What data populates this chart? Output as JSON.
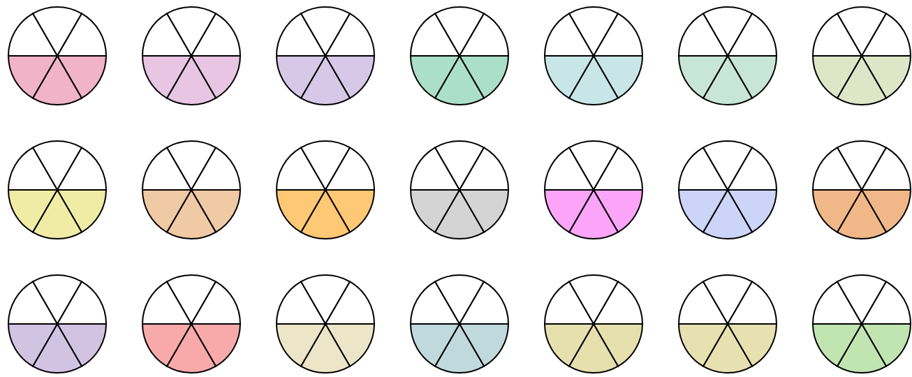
{
  "chart_data": [
    {
      "type": "pie",
      "categories": [
        null,
        null,
        null,
        null,
        null,
        null
      ],
      "values": [
        16.67,
        16.67,
        16.66,
        16.67,
        16.67,
        16.66
      ],
      "colors": [
        "#ffffff",
        "#ffffff",
        "#f0b3c8",
        "#f0b3c8",
        "#f0b3c8",
        "#ffffff"
      ]
    },
    {
      "type": "pie",
      "categories": [
        null,
        null,
        null,
        null,
        null,
        null
      ],
      "values": [
        16.67,
        16.67,
        16.66,
        16.67,
        16.67,
        16.66
      ],
      "colors": [
        "#ffffff",
        "#ffffff",
        "#e8c5e3",
        "#e8c5e3",
        "#e8c5e3",
        "#ffffff"
      ]
    },
    {
      "type": "pie",
      "categories": [
        null,
        null,
        null,
        null,
        null,
        null
      ],
      "values": [
        16.67,
        16.67,
        16.66,
        16.67,
        16.67,
        16.66
      ],
      "colors": [
        "#ffffff",
        "#ffffff",
        "#d6c8e6",
        "#d6c8e6",
        "#d6c8e6",
        "#ffffff"
      ]
    },
    {
      "type": "pie",
      "categories": [
        null,
        null,
        null,
        null,
        null,
        null
      ],
      "values": [
        16.67,
        16.67,
        16.66,
        16.67,
        16.67,
        16.66
      ],
      "colors": [
        "#ffffff",
        "#ffffff",
        "#abdfc9",
        "#abdfc9",
        "#abdfc9",
        "#ffffff"
      ]
    },
    {
      "type": "pie",
      "categories": [
        null,
        null,
        null,
        null,
        null,
        null
      ],
      "values": [
        16.67,
        16.67,
        16.66,
        16.67,
        16.67,
        16.66
      ],
      "colors": [
        "#ffffff",
        "#ffffff",
        "#c8e6e8",
        "#c8e6e8",
        "#c8e6e8",
        "#ffffff"
      ]
    },
    {
      "type": "pie",
      "categories": [
        null,
        null,
        null,
        null,
        null,
        null
      ],
      "values": [
        16.67,
        16.67,
        16.66,
        16.67,
        16.67,
        16.66
      ],
      "colors": [
        "#ffffff",
        "#ffffff",
        "#c7e6d8",
        "#c7e6d8",
        "#c7e6d8",
        "#ffffff"
      ]
    },
    {
      "type": "pie",
      "categories": [
        null,
        null,
        null,
        null,
        null,
        null
      ],
      "values": [
        16.67,
        16.67,
        16.66,
        16.67,
        16.67,
        16.66
      ],
      "colors": [
        "#ffffff",
        "#ffffff",
        "#dfe6c8",
        "#dfe6c8",
        "#dfe6c8",
        "#ffffff"
      ]
    },
    {
      "type": "pie",
      "categories": [
        null,
        null,
        null,
        null,
        null,
        null
      ],
      "values": [
        16.67,
        16.67,
        16.66,
        16.67,
        16.67,
        16.66
      ],
      "colors": [
        "#ffffff",
        "#ffffff",
        "#f1eca5",
        "#f1eca5",
        "#f1eca5",
        "#ffffff"
      ]
    },
    {
      "type": "pie",
      "categories": [
        null,
        null,
        null,
        null,
        null,
        null
      ],
      "values": [
        16.67,
        16.67,
        16.66,
        16.67,
        16.67,
        16.66
      ],
      "colors": [
        "#ffffff",
        "#ffffff",
        "#f0c9a5",
        "#f0c9a5",
        "#f0c9a5",
        "#ffffff"
      ]
    },
    {
      "type": "pie",
      "categories": [
        null,
        null,
        null,
        null,
        null,
        null
      ],
      "values": [
        16.67,
        16.67,
        16.66,
        16.67,
        16.67,
        16.66
      ],
      "colors": [
        "#ffffff",
        "#ffffff",
        "#ffc874",
        "#ffc874",
        "#ffc874",
        "#ffffff"
      ]
    },
    {
      "type": "pie",
      "categories": [
        null,
        null,
        null,
        null,
        null,
        null
      ],
      "values": [
        16.67,
        16.67,
        16.66,
        16.67,
        16.67,
        16.66
      ],
      "colors": [
        "#ffffff",
        "#ffffff",
        "#d4d4d4",
        "#d4d4d4",
        "#d4d4d4",
        "#ffffff"
      ]
    },
    {
      "type": "pie",
      "categories": [
        null,
        null,
        null,
        null,
        null,
        null
      ],
      "values": [
        16.67,
        16.67,
        16.66,
        16.67,
        16.67,
        16.66
      ],
      "colors": [
        "#ffffff",
        "#ffffff",
        "#fca5f8",
        "#fca5f8",
        "#fca5f8",
        "#ffffff"
      ]
    },
    {
      "type": "pie",
      "categories": [
        null,
        null,
        null,
        null,
        null,
        null
      ],
      "values": [
        16.67,
        16.67,
        16.66,
        16.67,
        16.67,
        16.66
      ],
      "colors": [
        "#ffffff",
        "#ffffff",
        "#ccd4f8",
        "#ccd4f8",
        "#ccd4f8",
        "#ffffff"
      ]
    },
    {
      "type": "pie",
      "categories": [
        null,
        null,
        null,
        null,
        null,
        null
      ],
      "values": [
        16.67,
        16.67,
        16.66,
        16.67,
        16.67,
        16.66
      ],
      "colors": [
        "#ffffff",
        "#ffffff",
        "#f0b888",
        "#f0b888",
        "#f0b888",
        "#ffffff"
      ]
    },
    {
      "type": "pie",
      "categories": [
        null,
        null,
        null,
        null,
        null,
        null
      ],
      "values": [
        16.67,
        16.67,
        16.66,
        16.67,
        16.67,
        16.66
      ],
      "colors": [
        "#ffffff",
        "#ffffff",
        "#d3c3e3",
        "#d3c3e3",
        "#d3c3e3",
        "#ffffff"
      ]
    },
    {
      "type": "pie",
      "categories": [
        null,
        null,
        null,
        null,
        null,
        null
      ],
      "values": [
        16.67,
        16.67,
        16.66,
        16.67,
        16.67,
        16.66
      ],
      "colors": [
        "#ffffff",
        "#ffffff",
        "#f8aaab",
        "#f8aaab",
        "#f8aaab",
        "#ffffff"
      ]
    },
    {
      "type": "pie",
      "categories": [
        null,
        null,
        null,
        null,
        null,
        null
      ],
      "values": [
        16.67,
        16.67,
        16.66,
        16.67,
        16.67,
        16.66
      ],
      "colors": [
        "#ffffff",
        "#ffffff",
        "#ede5c8",
        "#ede5c8",
        "#ede5c8",
        "#ffffff"
      ]
    },
    {
      "type": "pie",
      "categories": [
        null,
        null,
        null,
        null,
        null,
        null
      ],
      "values": [
        16.67,
        16.67,
        16.66,
        16.67,
        16.67,
        16.66
      ],
      "colors": [
        "#ffffff",
        "#ffffff",
        "#c0d9dc",
        "#c0d9dc",
        "#c0d9dc",
        "#ffffff"
      ]
    },
    {
      "type": "pie",
      "categories": [
        null,
        null,
        null,
        null,
        null,
        null
      ],
      "values": [
        16.67,
        16.67,
        16.66,
        16.67,
        16.67,
        16.66
      ],
      "colors": [
        "#ffffff",
        "#ffffff",
        "#e5e0ae",
        "#e5e0ae",
        "#e5e0ae",
        "#ffffff"
      ]
    },
    {
      "type": "pie",
      "categories": [
        null,
        null,
        null,
        null,
        null,
        null
      ],
      "values": [
        16.67,
        16.67,
        16.66,
        16.67,
        16.67,
        16.66
      ],
      "colors": [
        "#ffffff",
        "#ffffff",
        "#e7e1b1",
        "#e7e1b1",
        "#e7e1b1",
        "#ffffff"
      ]
    },
    {
      "type": "pie",
      "categories": [
        null,
        null,
        null,
        null,
        null,
        null
      ],
      "values": [
        16.67,
        16.67,
        16.66,
        16.67,
        16.67,
        16.66
      ],
      "colors": [
        "#ffffff",
        "#ffffff",
        "#c0e5b1",
        "#c0e5b1",
        "#c0e5b1",
        "#ffffff"
      ]
    }
  ]
}
